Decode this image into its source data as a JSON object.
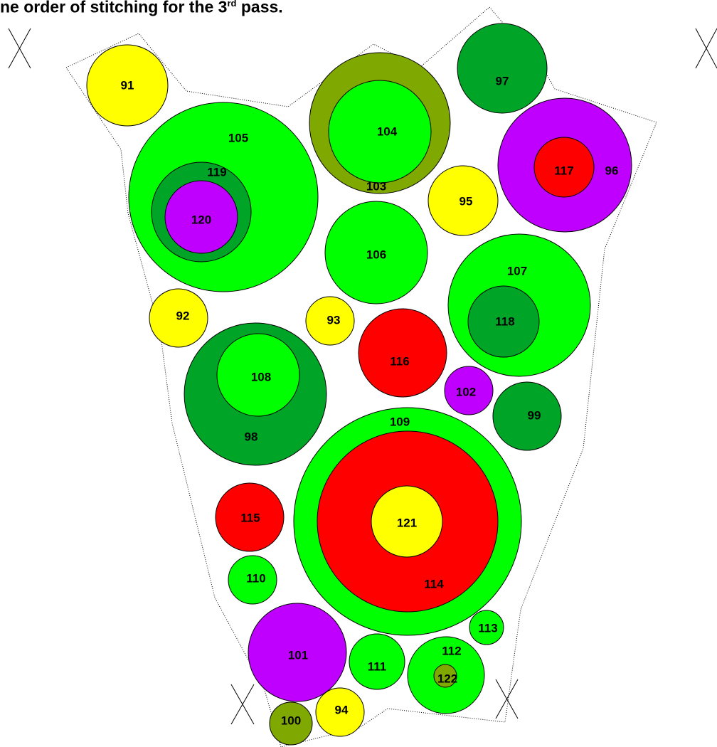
{
  "header": {
    "text_before": "ne order of stitching for the 3",
    "superscript": "rd",
    "text_after": " pass."
  },
  "colors": {
    "yellow": "#ffff00",
    "light_green": "#00ff00",
    "dark_green": "#00a527",
    "olive": "#7fa800",
    "red": "#ff0000",
    "purple": "#bf00ff",
    "outline": "#000000"
  },
  "circles": [
    {
      "id": "91",
      "label": "91",
      "color": "yellow"
    },
    {
      "id": "105",
      "label": "105",
      "color": "light_green"
    },
    {
      "id": "119",
      "label": "119",
      "color": "dark_green"
    },
    {
      "id": "120",
      "label": "120",
      "color": "purple"
    },
    {
      "id": "103",
      "label": "103",
      "color": "olive"
    },
    {
      "id": "104",
      "label": "104",
      "color": "light_green"
    },
    {
      "id": "97",
      "label": "97",
      "color": "dark_green"
    },
    {
      "id": "96",
      "label": "96",
      "color": "purple"
    },
    {
      "id": "117",
      "label": "117",
      "color": "red"
    },
    {
      "id": "95",
      "label": "95",
      "color": "yellow"
    },
    {
      "id": "106",
      "label": "106",
      "color": "light_green"
    },
    {
      "id": "107",
      "label": "107",
      "color": "light_green"
    },
    {
      "id": "118",
      "label": "118",
      "color": "dark_green"
    },
    {
      "id": "92",
      "label": "92",
      "color": "yellow"
    },
    {
      "id": "93",
      "label": "93",
      "color": "yellow"
    },
    {
      "id": "116",
      "label": "116",
      "color": "red"
    },
    {
      "id": "98",
      "label": "98",
      "color": "dark_green"
    },
    {
      "id": "108",
      "label": "108",
      "color": "light_green"
    },
    {
      "id": "102",
      "label": "102",
      "color": "purple"
    },
    {
      "id": "99",
      "label": "99",
      "color": "dark_green"
    },
    {
      "id": "109",
      "label": "109",
      "color": "light_green"
    },
    {
      "id": "114",
      "label": "114",
      "color": "red"
    },
    {
      "id": "121",
      "label": "121",
      "color": "yellow"
    },
    {
      "id": "115",
      "label": "115",
      "color": "red"
    },
    {
      "id": "110",
      "label": "110",
      "color": "light_green"
    },
    {
      "id": "101",
      "label": "101",
      "color": "purple"
    },
    {
      "id": "111",
      "label": "111",
      "color": "light_green"
    },
    {
      "id": "112",
      "label": "112",
      "color": "light_green"
    },
    {
      "id": "122",
      "label": "122",
      "color": "olive"
    },
    {
      "id": "113",
      "label": "113",
      "color": "light_green"
    },
    {
      "id": "100",
      "label": "100",
      "color": "olive"
    },
    {
      "id": "94",
      "label": "94",
      "color": "yellow"
    }
  ]
}
